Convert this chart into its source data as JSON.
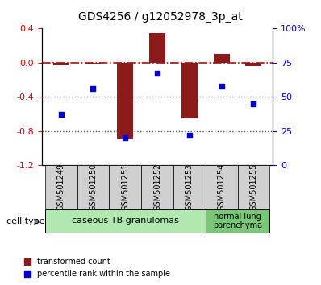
{
  "title": "GDS4256 / g12052978_3p_at",
  "samples": [
    "GSM501249",
    "GSM501250",
    "GSM501251",
    "GSM501252",
    "GSM501253",
    "GSM501254",
    "GSM501255"
  ],
  "transformed_count": [
    -0.03,
    -0.02,
    -0.9,
    0.35,
    -0.65,
    0.1,
    -0.04
  ],
  "percentile_rank": [
    37,
    56,
    20,
    67,
    22,
    58,
    45
  ],
  "ylim_left": [
    -1.2,
    0.4
  ],
  "ylim_right": [
    0,
    100
  ],
  "yticks_left": [
    0.4,
    0.0,
    -0.4,
    -0.8,
    -1.2
  ],
  "yticks_right": [
    100,
    75,
    50,
    25,
    0
  ],
  "bar_color": "#8B1A1A",
  "dot_color": "#0000CC",
  "hline_color": "#CC0000",
  "dotted_line_color": "#555555",
  "bar_width": 0.5,
  "cell_type_label": "cell type",
  "group1_label": "caseous TB granulomas",
  "group1_color": "#b0e8b0",
  "group2_label": "normal lung\nparenchyma",
  "group2_color": "#78c878",
  "legend_label1": "transformed count",
  "legend_label2": "percentile rank within the sample"
}
